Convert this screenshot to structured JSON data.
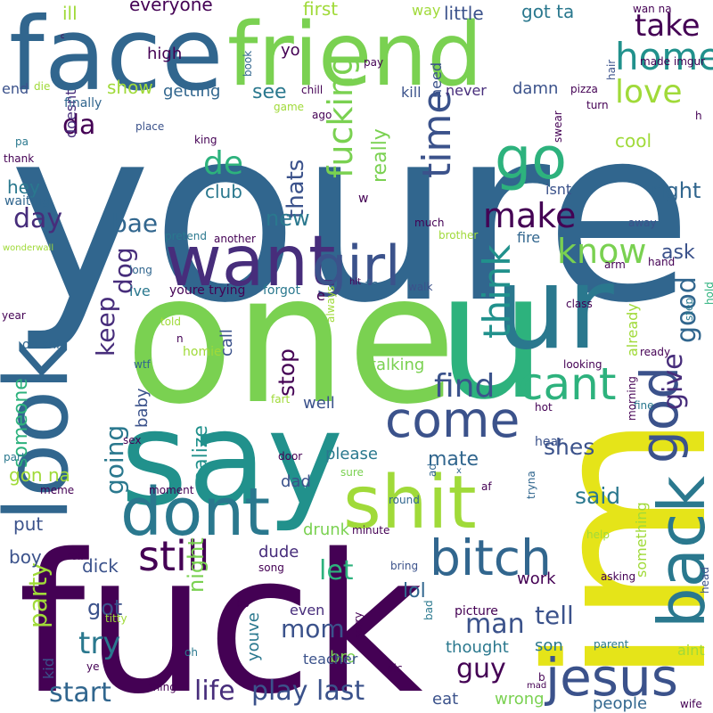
{
  "wordcloud": {
    "words": [
      {
        "text": "youre",
        "color": "#31668e"
      },
      {
        "text": "fuck",
        "color": "#440154"
      },
      {
        "text": "im",
        "color": "#e5e419"
      },
      {
        "text": "one",
        "color": "#7ad151"
      },
      {
        "text": "u",
        "color": "#2db27d"
      },
      {
        "text": "say",
        "color": "#21918c"
      },
      {
        "text": "face",
        "color": "#31668e"
      },
      {
        "text": "friend",
        "color": "#7ad151"
      },
      {
        "text": "look",
        "color": "#31668e"
      },
      {
        "text": "ur",
        "color": "#2a788e"
      },
      {
        "text": "shit",
        "color": "#a0da39"
      },
      {
        "text": "dont",
        "color": "#2a788e"
      },
      {
        "text": "want",
        "color": "#472d7b"
      },
      {
        "text": "girl",
        "color": "#3b528b"
      },
      {
        "text": "back",
        "color": "#2a788e"
      },
      {
        "text": "jesus",
        "color": "#3b528b"
      },
      {
        "text": "bitch",
        "color": "#31668e"
      },
      {
        "text": "god",
        "color": "#3b528b"
      },
      {
        "text": "go",
        "color": "#2db27d"
      },
      {
        "text": "come",
        "color": "#3b528b"
      },
      {
        "text": "cant",
        "color": "#2db27d"
      },
      {
        "text": "time",
        "color": "#3b528b"
      },
      {
        "text": "think",
        "color": "#21918c"
      },
      {
        "text": "fucking",
        "color": "#7ad151"
      },
      {
        "text": "still",
        "color": "#440154"
      },
      {
        "text": "find",
        "color": "#3b528b"
      },
      {
        "text": "make",
        "color": "#440154"
      },
      {
        "text": "home",
        "color": "#21918c"
      },
      {
        "text": "love",
        "color": "#a0da39"
      },
      {
        "text": "know",
        "color": "#7ad151"
      },
      {
        "text": "take",
        "color": "#440154"
      },
      {
        "text": "de",
        "color": "#2db27d"
      },
      {
        "text": "da",
        "color": "#440154"
      },
      {
        "text": "day",
        "color": "#472d7b"
      },
      {
        "text": "bae",
        "color": "#31668e"
      },
      {
        "text": "dog",
        "color": "#472d7b"
      },
      {
        "text": "keep",
        "color": "#472d7b"
      },
      {
        "text": "going",
        "color": "#2a788e"
      },
      {
        "text": "party",
        "color": "#a0da39"
      },
      {
        "text": "try",
        "color": "#2a788e"
      },
      {
        "text": "start",
        "color": "#31668e"
      },
      {
        "text": "life",
        "color": "#472d7b"
      },
      {
        "text": "play",
        "color": "#3b528b"
      },
      {
        "text": "last",
        "color": "#3b528b"
      },
      {
        "text": "mom",
        "color": "#3b528b"
      },
      {
        "text": "man",
        "color": "#3b528b"
      },
      {
        "text": "guy",
        "color": "#440154"
      },
      {
        "text": "tell",
        "color": "#3b528b"
      },
      {
        "text": "let",
        "color": "#2db27d"
      },
      {
        "text": "said",
        "color": "#2a788e"
      },
      {
        "text": "shes",
        "color": "#3b528b"
      },
      {
        "text": "good",
        "color": "#31668e"
      },
      {
        "text": "give",
        "color": "#472d7b"
      },
      {
        "text": "ask",
        "color": "#3b528b"
      },
      {
        "text": "right",
        "color": "#31668e"
      },
      {
        "text": "really",
        "color": "#7ad151"
      },
      {
        "text": "thats",
        "color": "#3b528b"
      },
      {
        "text": "see",
        "color": "#2a788e"
      },
      {
        "text": "stop",
        "color": "#440154"
      },
      {
        "text": "got",
        "color": "#3b528b"
      },
      {
        "text": "night",
        "color": "#7ad151"
      },
      {
        "text": "mate",
        "color": "#31668e"
      },
      {
        "text": "lol",
        "color": "#31668e"
      },
      {
        "text": "new",
        "color": "#2a788e"
      },
      {
        "text": "someone",
        "color": "#2db27d"
      },
      {
        "text": "realize",
        "color": "#21918c"
      },
      {
        "text": "call",
        "color": "#3b528b"
      },
      {
        "text": "cool",
        "color": "#a0da39"
      },
      {
        "text": "baby",
        "color": "#3b528b"
      },
      {
        "text": "club",
        "color": "#2a788e"
      },
      {
        "text": "ive",
        "color": "#2a788e"
      },
      {
        "text": "youre trying",
        "color": "#440154"
      },
      {
        "text": "forgot",
        "color": "#2a788e"
      },
      {
        "text": "feel",
        "color": "#31668e"
      },
      {
        "text": "already",
        "color": "#a0da39"
      },
      {
        "text": "show",
        "color": "#a0da39"
      },
      {
        "text": "getting",
        "color": "#31668e"
      },
      {
        "text": "kill",
        "color": "#3b528b"
      },
      {
        "text": "damn",
        "color": "#3b528b"
      },
      {
        "text": "need",
        "color": "#3b528b"
      },
      {
        "text": "got ta",
        "color": "#2a788e"
      },
      {
        "text": "everyone",
        "color": "#440154"
      },
      {
        "text": "first",
        "color": "#a0da39"
      },
      {
        "text": "way",
        "color": "#a0da39"
      },
      {
        "text": "little",
        "color": "#3b528b"
      },
      {
        "text": "high",
        "color": "#440154"
      },
      {
        "text": "yo",
        "color": "#440154"
      },
      {
        "text": "ill",
        "color": "#a0da39"
      },
      {
        "text": "end",
        "color": "#3b528b"
      },
      {
        "text": "doesnt",
        "color": "#472d7b"
      },
      {
        "text": "finally",
        "color": "#31668e"
      },
      {
        "text": "never",
        "color": "#472d7b"
      },
      {
        "text": "hey",
        "color": "#2a788e"
      },
      {
        "text": "isnt",
        "color": "#3b528b"
      },
      {
        "text": "fire",
        "color": "#31668e"
      },
      {
        "text": "talking",
        "color": "#7ad151"
      },
      {
        "text": "please",
        "color": "#2a788e"
      },
      {
        "text": "put",
        "color": "#3b528b"
      },
      {
        "text": "well",
        "color": "#3b528b"
      },
      {
        "text": "dad",
        "color": "#3b528b"
      },
      {
        "text": "gon na",
        "color": "#a0da39"
      },
      {
        "text": "boy",
        "color": "#3b528b"
      },
      {
        "text": "dick",
        "color": "#3b528b"
      },
      {
        "text": "work",
        "color": "#440154"
      },
      {
        "text": "drunk",
        "color": "#7ad151"
      },
      {
        "text": "dude",
        "color": "#472d7b"
      },
      {
        "text": "youve",
        "color": "#2a788e"
      },
      {
        "text": "kid",
        "color": "#3b528b"
      },
      {
        "text": "bro",
        "color": "#7ad151"
      },
      {
        "text": "thought",
        "color": "#2a788e"
      },
      {
        "text": "son",
        "color": "#2a788e"
      },
      {
        "text": "eat",
        "color": "#3b528b"
      },
      {
        "text": "wrong",
        "color": "#7ad151"
      },
      {
        "text": "people",
        "color": "#31668e"
      },
      {
        "text": "something",
        "color": "#a0da39"
      },
      {
        "text": "aint",
        "color": "#a0da39"
      },
      {
        "text": "even",
        "color": "#472d7b"
      },
      {
        "text": "teacher",
        "color": "#3b528b"
      },
      {
        "text": "picture",
        "color": "#440154"
      },
      {
        "text": "hear",
        "color": "#3b528b"
      },
      {
        "text": "homie",
        "color": "#a0da39"
      },
      {
        "text": "wan na",
        "color": "#440154"
      },
      {
        "text": "made imgur",
        "color": "#440154"
      },
      {
        "text": "wont",
        "color": "#7ad151"
      },
      {
        "text": "pay",
        "color": "#440154"
      },
      {
        "text": "book",
        "color": "#31668e"
      },
      {
        "text": "hair",
        "color": "#3b528b"
      },
      {
        "text": "pizza",
        "color": "#440154"
      },
      {
        "text": "turn",
        "color": "#440154"
      },
      {
        "text": "swear",
        "color": "#440154"
      },
      {
        "text": "game",
        "color": "#a0da39"
      },
      {
        "text": "ago",
        "color": "#440154"
      },
      {
        "text": "chill",
        "color": "#440154"
      },
      {
        "text": "die",
        "color": "#a0da39"
      },
      {
        "text": "place",
        "color": "#3b528b"
      },
      {
        "text": "king",
        "color": "#440154"
      },
      {
        "text": "pa",
        "color": "#2a788e"
      },
      {
        "text": "thank",
        "color": "#440154"
      },
      {
        "text": "waiting",
        "color": "#31668e"
      },
      {
        "text": "wonderwall",
        "color": "#a0da39"
      },
      {
        "text": "pretend",
        "color": "#2a788e"
      },
      {
        "text": "another",
        "color": "#440154"
      },
      {
        "text": "brother",
        "color": "#a0da39"
      },
      {
        "text": "much",
        "color": "#440154"
      },
      {
        "text": "away",
        "color": "#3b528b"
      },
      {
        "text": "long",
        "color": "#31668e"
      },
      {
        "text": "arm",
        "color": "#440154"
      },
      {
        "text": "hand",
        "color": "#440154"
      },
      {
        "text": "hit",
        "color": "#440154"
      },
      {
        "text": "walk",
        "color": "#3b528b"
      },
      {
        "text": "hold",
        "color": "#2db27d"
      },
      {
        "text": "step",
        "color": "#2a788e"
      },
      {
        "text": "class",
        "color": "#440154"
      },
      {
        "text": "told",
        "color": "#a0da39"
      },
      {
        "text": "always",
        "color": "#a0da39"
      },
      {
        "text": "year",
        "color": "#440154"
      },
      {
        "text": "oh shit",
        "color": "#31668e"
      },
      {
        "text": "n",
        "color": "#440154"
      },
      {
        "text": "wtf",
        "color": "#31668e"
      },
      {
        "text": "looking",
        "color": "#440154"
      },
      {
        "text": "ready",
        "color": "#440154"
      },
      {
        "text": "fart",
        "color": "#a0da39"
      },
      {
        "text": "hot",
        "color": "#440154"
      },
      {
        "text": "fine",
        "color": "#2a788e"
      },
      {
        "text": "morning",
        "color": "#440154"
      },
      {
        "text": "sex",
        "color": "#440154"
      },
      {
        "text": "part",
        "color": "#2a788e"
      },
      {
        "text": "door",
        "color": "#440154"
      },
      {
        "text": "sure",
        "color": "#7ad151"
      },
      {
        "text": "ad",
        "color": "#31668e"
      },
      {
        "text": "x",
        "color": "#31668e"
      },
      {
        "text": "af",
        "color": "#440154"
      },
      {
        "text": "tryna",
        "color": "#31668e"
      },
      {
        "text": "meme",
        "color": "#440154"
      },
      {
        "text": "moment",
        "color": "#440154"
      },
      {
        "text": "round",
        "color": "#31668e"
      },
      {
        "text": "minute",
        "color": "#440154"
      },
      {
        "text": "help",
        "color": "#a0da39"
      },
      {
        "text": "roll",
        "color": "#440154"
      },
      {
        "text": "song",
        "color": "#440154"
      },
      {
        "text": "bring",
        "color": "#3b528b"
      },
      {
        "text": "asking",
        "color": "#440154"
      },
      {
        "text": "head",
        "color": "#3b528b"
      },
      {
        "text": "bo",
        "color": "#440154"
      },
      {
        "text": "titty",
        "color": "#a0da39"
      },
      {
        "text": "sorry",
        "color": "#440154"
      },
      {
        "text": "bad",
        "color": "#2a788e"
      },
      {
        "text": "parent",
        "color": "#2a788e"
      },
      {
        "text": "oh",
        "color": "#2a788e"
      },
      {
        "text": "ye",
        "color": "#440154"
      },
      {
        "text": "pic",
        "color": "#440154"
      },
      {
        "text": "b",
        "color": "#440154"
      },
      {
        "text": "mad",
        "color": "#440154"
      },
      {
        "text": "thing",
        "color": "#440154"
      },
      {
        "text": "wife",
        "color": "#440154"
      },
      {
        "text": "e",
        "color": "#440154"
      },
      {
        "text": "w",
        "color": "#440154"
      },
      {
        "text": "h",
        "color": "#440154"
      },
      {
        "text": "c",
        "color": "#440154"
      }
    ]
  }
}
